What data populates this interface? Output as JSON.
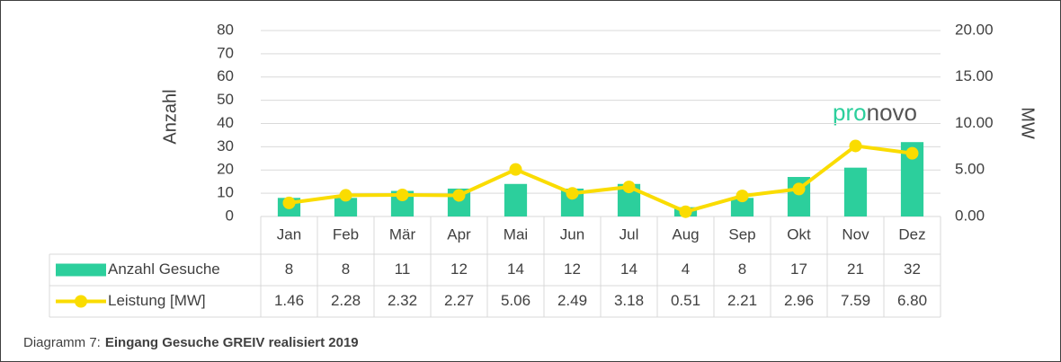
{
  "chart_data": {
    "type": "bar-line",
    "categories": [
      "Jan",
      "Feb",
      "Mär",
      "Apr",
      "Mai",
      "Jun",
      "Jul",
      "Aug",
      "Sep",
      "Okt",
      "Nov",
      "Dez"
    ],
    "series": [
      {
        "name": "Anzahl Gesuche",
        "color": "#2ccf9c",
        "type": "bar",
        "values": [
          8,
          8,
          11,
          12,
          14,
          12,
          14,
          4,
          8,
          17,
          21,
          32
        ]
      },
      {
        "name": "Leistung [MW]",
        "color": "#fadc00",
        "type": "line",
        "axis": "y2",
        "values": [
          1.46,
          2.28,
          2.32,
          2.27,
          5.06,
          2.49,
          3.18,
          0.51,
          2.21,
          2.96,
          7.59,
          6.8
        ],
        "value_labels": [
          "1.46",
          "2.28",
          "2.32",
          "2.27",
          "5.06",
          "2.49",
          "3.18",
          "0.51",
          "2.21",
          "2.96",
          "7.59",
          "6.80"
        ]
      }
    ],
    "ylabel": "Anzahl",
    "y2label": "MW",
    "ylim": [
      0,
      80
    ],
    "yticks": [
      0,
      10,
      20,
      30,
      40,
      50,
      60,
      70,
      80
    ],
    "y2lim": [
      0,
      20
    ],
    "y2ticks": [
      {
        "value": 0,
        "label": "0.00"
      },
      {
        "value": 5,
        "label": "5.00"
      },
      {
        "value": 10,
        "label": "10.00"
      },
      {
        "value": 15,
        "label": "15.00"
      },
      {
        "value": 20,
        "label": "20.00"
      }
    ],
    "grid": true,
    "logo": [
      "pro",
      "novo"
    ],
    "caption": {
      "label": "Diagramm 7:",
      "text": "Eingang Gesuche GREIV realisiert 2019"
    }
  }
}
